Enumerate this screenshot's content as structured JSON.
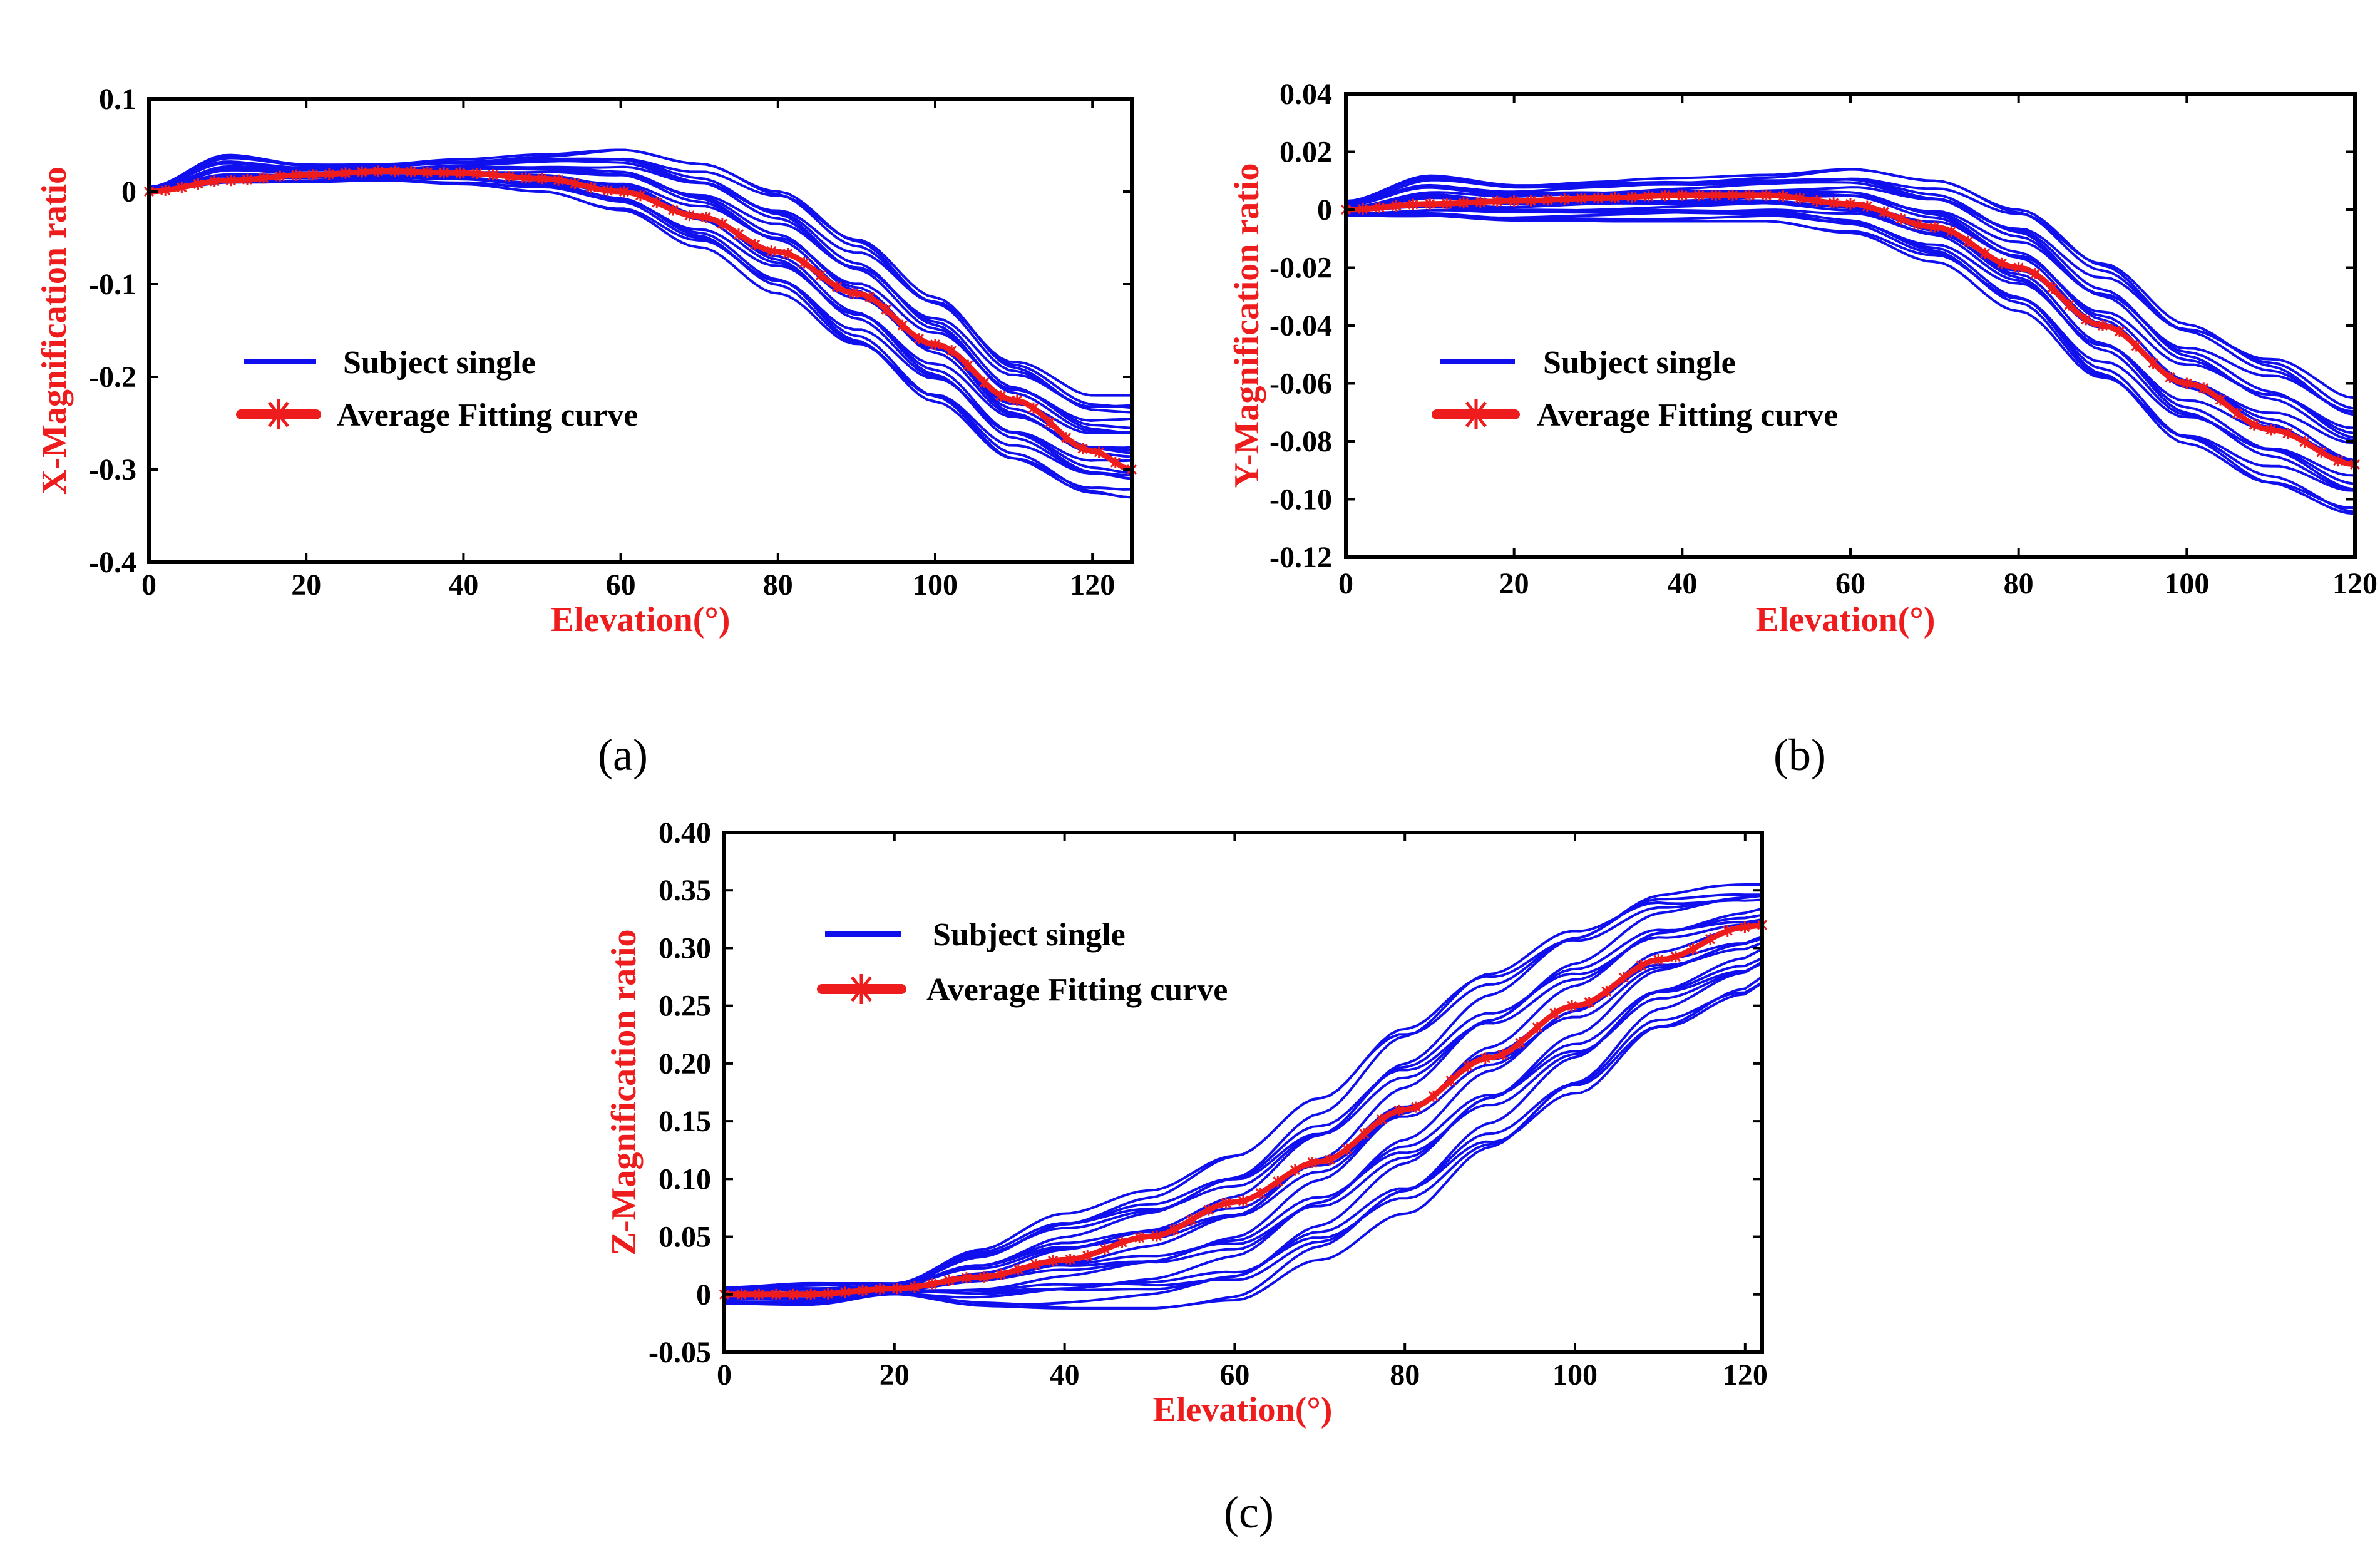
{
  "colors": {
    "subject": "#1010ee",
    "average": "#ee1c1c",
    "frame": "#000000",
    "label": "#ee1c1c"
  },
  "chart_data": [
    {
      "type": "line",
      "panel_label": "(a)",
      "xlabel": "Elevation(°)",
      "ylabel": "X-Magnification ratio",
      "xlim": [
        0,
        125
      ],
      "ylim": [
        -0.4,
        0.1
      ],
      "xticks": [
        0,
        20,
        40,
        60,
        80,
        100,
        120
      ],
      "xtick_labels": [
        "0",
        "20",
        "40",
        "60",
        "80",
        "100",
        "120"
      ],
      "yticks": [
        0.1,
        0,
        -0.1,
        -0.2,
        -0.3,
        -0.4
      ],
      "ytick_labels": [
        "0.1",
        "0",
        "-0.1",
        "-0.2",
        "-0.3",
        "-0.4"
      ],
      "legend": {
        "position": "center-left",
        "entries": [
          "Subject single",
          "Average Fitting curve"
        ]
      },
      "average_curve": {
        "name": "Average Fitting curve",
        "x": [
          0,
          10,
          20,
          30,
          40,
          50,
          60,
          70,
          80,
          90,
          100,
          110,
          120,
          125
        ],
        "y": [
          0.0,
          0.012,
          0.018,
          0.022,
          0.02,
          0.014,
          0.0,
          -0.027,
          -0.065,
          -0.11,
          -0.165,
          -0.225,
          -0.28,
          -0.3
        ]
      },
      "subject_band": {
        "name": "Subject single",
        "count": 22,
        "x": [
          0,
          10,
          20,
          30,
          40,
          50,
          60,
          70,
          80,
          90,
          100,
          110,
          120,
          125
        ],
        "lower": [
          0.0,
          0.008,
          0.01,
          0.012,
          0.008,
          0.0,
          -0.02,
          -0.06,
          -0.11,
          -0.17,
          -0.23,
          -0.29,
          -0.325,
          -0.33
        ],
        "upper": [
          0.005,
          0.04,
          0.03,
          0.03,
          0.035,
          0.04,
          0.045,
          0.03,
          0.0,
          -0.05,
          -0.11,
          -0.18,
          -0.22,
          -0.22
        ]
      }
    },
    {
      "type": "line",
      "panel_label": "(b)",
      "xlabel": "Elevation(°)",
      "ylabel": "Y-Magnification ratio",
      "xlim": [
        0,
        120
      ],
      "ylim": [
        -0.12,
        0.04
      ],
      "xticks": [
        0,
        20,
        40,
        60,
        80,
        100,
        120
      ],
      "xtick_labels": [
        "0",
        "20",
        "40",
        "60",
        "80",
        "100",
        "120"
      ],
      "yticks": [
        0.04,
        0.02,
        0,
        -0.02,
        -0.04,
        -0.06,
        -0.08,
        -0.1,
        -0.12
      ],
      "ytick_labels": [
        "0.04",
        "0.02",
        "0",
        "-0.02",
        "-0.04",
        "-0.06",
        "-0.08",
        "-0.10",
        "-0.12"
      ],
      "legend": {
        "position": "center-left",
        "entries": [
          "Subject single",
          "Average Fitting curve"
        ]
      },
      "average_curve": {
        "name": "Average Fitting curve",
        "x": [
          0,
          10,
          20,
          30,
          40,
          50,
          60,
          70,
          80,
          90,
          100,
          110,
          120
        ],
        "y": [
          0.0,
          0.002,
          0.003,
          0.004,
          0.005,
          0.005,
          0.002,
          -0.006,
          -0.02,
          -0.04,
          -0.06,
          -0.076,
          -0.088
        ]
      },
      "subject_band": {
        "name": "Subject single",
        "count": 22,
        "x": [
          0,
          10,
          20,
          30,
          40,
          50,
          60,
          70,
          80,
          90,
          100,
          110,
          120
        ],
        "lower": [
          -0.002,
          -0.003,
          -0.004,
          -0.004,
          -0.004,
          -0.004,
          -0.008,
          -0.018,
          -0.035,
          -0.06,
          -0.082,
          -0.095,
          -0.105
        ],
        "upper": [
          0.003,
          0.012,
          0.009,
          0.01,
          0.011,
          0.012,
          0.014,
          0.01,
          0.0,
          -0.018,
          -0.038,
          -0.05,
          -0.065
        ]
      }
    },
    {
      "type": "line",
      "panel_label": "(c)",
      "xlabel": "Elevation(°)",
      "ylabel": "Z-Magnification ratio",
      "xlim": [
        0,
        122
      ],
      "ylim": [
        -0.05,
        0.4
      ],
      "xticks": [
        0,
        20,
        40,
        60,
        80,
        100,
        120
      ],
      "xtick_labels": [
        "0",
        "20",
        "40",
        "60",
        "80",
        "100",
        "120"
      ],
      "yticks": [
        0.4,
        0.35,
        0.3,
        0.25,
        0.2,
        0.15,
        0.1,
        0.05,
        0,
        -0.05
      ],
      "ytick_labels": [
        "0.40",
        "0.35",
        "0.30",
        "0.25",
        "0.20",
        "0.15",
        "0.10",
        "0.05",
        "0",
        "-0.05"
      ],
      "legend": {
        "position": "top-left",
        "entries": [
          "Subject single",
          "Average Fitting curve"
        ]
      },
      "average_curve": {
        "name": "Average Fitting curve",
        "x": [
          0,
          10,
          20,
          30,
          40,
          50,
          60,
          70,
          80,
          90,
          100,
          110,
          120,
          122
        ],
        "y": [
          0.0,
          0.0,
          0.005,
          0.015,
          0.03,
          0.05,
          0.08,
          0.115,
          0.16,
          0.205,
          0.25,
          0.29,
          0.318,
          0.32
        ]
      },
      "subject_band": {
        "name": "Subject single",
        "count": 22,
        "x": [
          0,
          10,
          20,
          30,
          40,
          50,
          60,
          70,
          80,
          90,
          100,
          110,
          120,
          122
        ],
        "lower": [
          -0.008,
          -0.01,
          0.0,
          -0.01,
          -0.012,
          -0.012,
          -0.005,
          0.03,
          0.07,
          0.12,
          0.17,
          0.23,
          0.26,
          0.27
        ],
        "upper": [
          0.006,
          0.01,
          0.01,
          0.04,
          0.07,
          0.09,
          0.12,
          0.17,
          0.23,
          0.28,
          0.32,
          0.35,
          0.355,
          0.355
        ]
      }
    }
  ]
}
